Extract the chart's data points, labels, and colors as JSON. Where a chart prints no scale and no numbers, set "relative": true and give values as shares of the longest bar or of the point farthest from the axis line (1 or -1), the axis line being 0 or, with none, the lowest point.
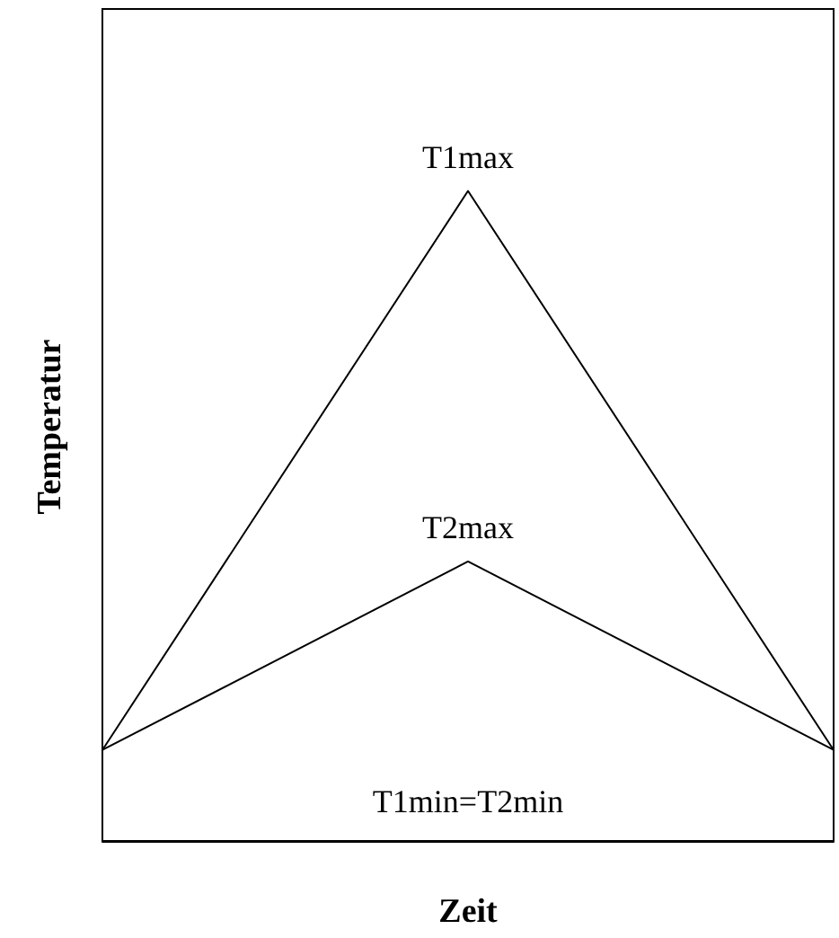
{
  "chart_data": {
    "type": "line",
    "relative": true,
    "xlabel": "Zeit",
    "ylabel": "Temperatur",
    "categories": [
      null,
      null,
      null
    ],
    "series": [
      {
        "color": "#000000",
        "values": [
          0.14,
          1,
          0.14
        ]
      },
      {
        "color": "#000000",
        "values": [
          0.14,
          0.43,
          0.14
        ]
      }
    ],
    "annotations": [
      {
        "text": "T1max",
        "y": 1
      },
      {
        "text": "T2max",
        "y": 0.43
      },
      "T1min=T2min"
    ],
    "grid": false,
    "marker": "none",
    "line_style": "solid"
  }
}
